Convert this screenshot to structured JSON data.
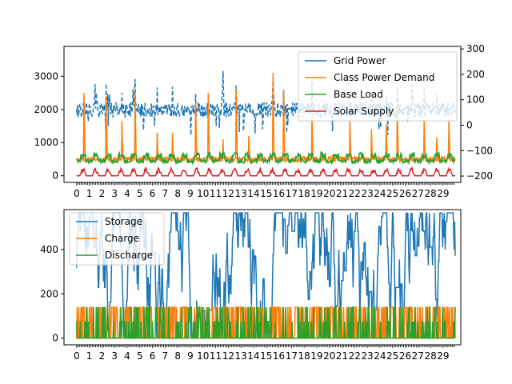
{
  "chart_data": [
    {
      "type": "line",
      "panel": "top",
      "x_tick_labels": [
        "0",
        "1",
        "2",
        "3",
        "4",
        "5",
        "6",
        "7",
        "8",
        "9",
        "10",
        "11",
        "12",
        "13",
        "14",
        "15",
        "16",
        "17",
        "18",
        "19",
        "20",
        "21",
        "22",
        "23",
        "24",
        "25",
        "26",
        "27",
        "28",
        "29"
      ],
      "xlim": [
        -1,
        30.4
      ],
      "y_left": {
        "ticks": [
          0,
          1000,
          2000,
          3000
        ],
        "ylim": [
          -200,
          3900
        ]
      },
      "y_right": {
        "ticks": [
          -200,
          -100,
          0,
          100,
          200,
          300
        ],
        "ylim": [
          -225,
          310
        ]
      },
      "legend": {
        "placement": "top-right"
      },
      "series": [
        {
          "name": "Grid Power",
          "axis": "right",
          "color": "#1f77b4",
          "style": "dashed",
          "typical": 60,
          "peak_days": [
            1,
            2,
            4,
            11,
            15,
            26
          ]
        },
        {
          "name": "Class Power Demand",
          "axis": "left",
          "color": "#ff7f0e",
          "style": "solid",
          "baseline": 500,
          "peak_values": [
            2500,
            2400,
            1650,
            2550,
            1300,
            1300,
            2200,
            2500,
            1100,
            2600,
            1200,
            3100,
            2600,
            1800,
            1650,
            1400,
            1550,
            2200,
            1650,
            1150,
            1650,
            1200,
            2350
          ]
        },
        {
          "name": "Base Load",
          "axis": "left",
          "color": "#2ca02c",
          "style": "solid",
          "range": [
            330,
            700
          ]
        },
        {
          "name": "Solar Supply",
          "axis": "left",
          "color": "#d62728",
          "style": "solid",
          "peak": 250
        }
      ]
    },
    {
      "type": "line",
      "panel": "bottom",
      "x_tick_labels": [
        "0",
        "1",
        "2",
        "3",
        "4",
        "5",
        "6",
        "7",
        "8",
        "9",
        "10",
        "11",
        "12",
        "13",
        "14",
        "15",
        "16",
        "17",
        "18",
        "19",
        "20",
        "21",
        "22",
        "23",
        "24",
        "25",
        "26",
        "27",
        "28",
        "29"
      ],
      "xlim": [
        -1,
        30.4
      ],
      "y_left": {
        "ticks": [
          0,
          200,
          400
        ],
        "ylim": [
          -30,
          580
        ]
      },
      "legend": {
        "placement": "top-left"
      },
      "series": [
        {
          "name": "Storage",
          "color": "#1f77b4",
          "range": [
            0,
            565
          ]
        },
        {
          "name": "Charge",
          "color": "#ff7f0e",
          "values": [
            0,
            140
          ]
        },
        {
          "name": "Discharge",
          "color": "#2ca02c",
          "values": [
            0,
            75,
            140
          ]
        }
      ]
    }
  ]
}
